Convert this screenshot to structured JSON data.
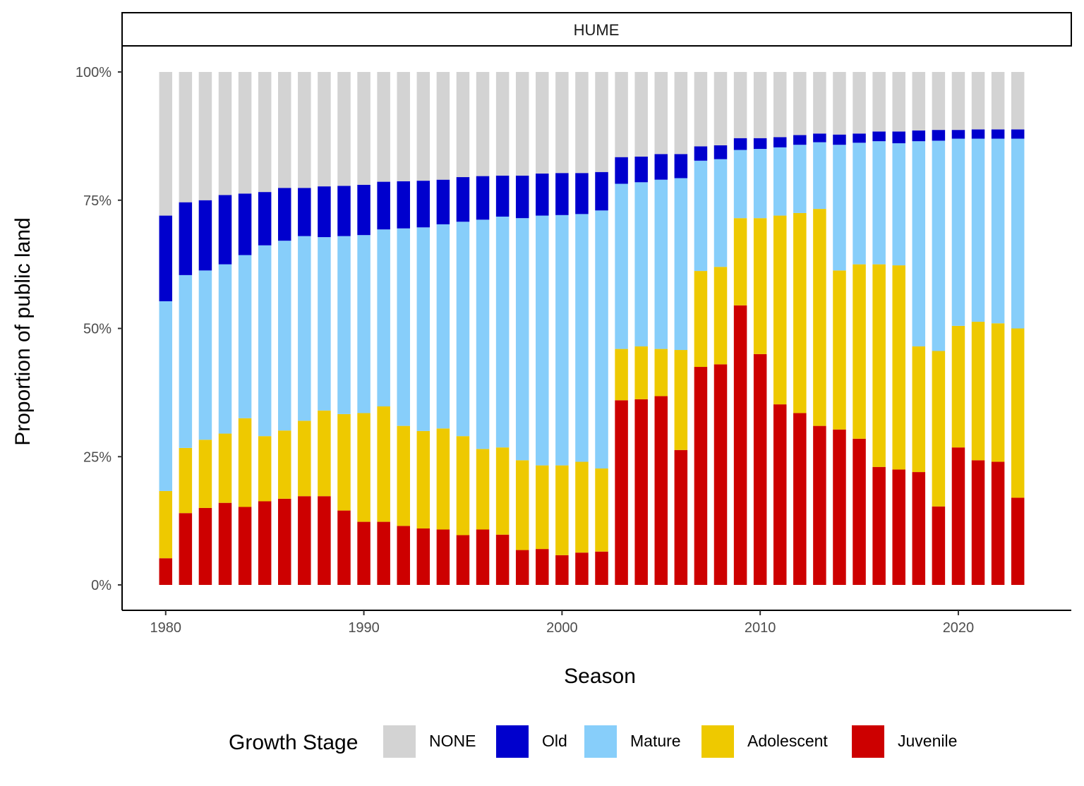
{
  "chart_data": {
    "type": "bar",
    "stacked": true,
    "facet_label": "HUME",
    "xlabel": "Season",
    "ylabel": "Proportion of public land",
    "ylim": [
      0,
      1
    ],
    "y_ticks": [
      {
        "value": 0,
        "label": "0%"
      },
      {
        "value": 0.25,
        "label": "25%"
      },
      {
        "value": 0.5,
        "label": "50%"
      },
      {
        "value": 0.75,
        "label": "75%"
      },
      {
        "value": 1,
        "label": "100%"
      }
    ],
    "x_ticks": [
      {
        "value": 1980,
        "label": "1980"
      },
      {
        "value": 1990,
        "label": "1990"
      },
      {
        "value": 2000,
        "label": "2000"
      },
      {
        "value": 2010,
        "label": "2010"
      },
      {
        "value": 2020,
        "label": "2020"
      }
    ],
    "xlim": [
      1977.8,
      2025.7
    ],
    "legend": {
      "title": "Growth Stage",
      "position": "bottom",
      "items": [
        {
          "key": "none",
          "label": "NONE",
          "color": "#d3d3d3"
        },
        {
          "key": "old",
          "label": "Old",
          "color": "#0000cd"
        },
        {
          "key": "mature",
          "label": "Mature",
          "color": "#87cefa"
        },
        {
          "key": "adolescent",
          "label": "Adolescent",
          "color": "#eec900"
        },
        {
          "key": "juvenile",
          "label": "Juvenile",
          "color": "#cd0000"
        }
      ]
    },
    "stack_order_bottom_to_top": [
      "juvenile",
      "adolescent",
      "mature",
      "old",
      "none"
    ],
    "years": [
      1980,
      1981,
      1982,
      1983,
      1984,
      1985,
      1986,
      1987,
      1988,
      1989,
      1990,
      1991,
      1992,
      1993,
      1994,
      1995,
      1996,
      1997,
      1998,
      1999,
      2000,
      2001,
      2002,
      2003,
      2004,
      2005,
      2006,
      2007,
      2008,
      2009,
      2010,
      2011,
      2012,
      2013,
      2014,
      2015,
      2016,
      2017,
      2018,
      2019,
      2020,
      2021,
      2022,
      2023
    ],
    "series": [
      {
        "name": "Juvenile",
        "key": "juvenile",
        "values": [
          0.052,
          0.14,
          0.15,
          0.16,
          0.152,
          0.163,
          0.168,
          0.173,
          0.173,
          0.145,
          0.123,
          0.123,
          0.115,
          0.11,
          0.108,
          0.097,
          0.108,
          0.098,
          0.068,
          0.07,
          0.058,
          0.063,
          0.065,
          0.36,
          0.362,
          0.368,
          0.263,
          0.425,
          0.43,
          0.545,
          0.45,
          0.352,
          0.335,
          0.31,
          0.303,
          0.285,
          0.23,
          0.225,
          0.22,
          0.153,
          0.268,
          0.243,
          0.24,
          0.17
        ]
      },
      {
        "name": "Adolescent",
        "key": "adolescent",
        "values": [
          0.131,
          0.127,
          0.133,
          0.135,
          0.173,
          0.127,
          0.133,
          0.147,
          0.167,
          0.188,
          0.212,
          0.225,
          0.195,
          0.19,
          0.197,
          0.193,
          0.157,
          0.17,
          0.175,
          0.163,
          0.175,
          0.177,
          0.162,
          0.1,
          0.103,
          0.092,
          0.195,
          0.187,
          0.19,
          0.17,
          0.265,
          0.368,
          0.39,
          0.423,
          0.31,
          0.34,
          0.395,
          0.398,
          0.245,
          0.303,
          0.237,
          0.27,
          0.27,
          0.33
        ]
      },
      {
        "name": "Mature",
        "key": "mature",
        "values": [
          0.37,
          0.337,
          0.33,
          0.33,
          0.318,
          0.372,
          0.37,
          0.36,
          0.338,
          0.347,
          0.347,
          0.345,
          0.385,
          0.397,
          0.398,
          0.418,
          0.447,
          0.45,
          0.472,
          0.487,
          0.488,
          0.483,
          0.503,
          0.322,
          0.32,
          0.33,
          0.335,
          0.215,
          0.21,
          0.133,
          0.135,
          0.133,
          0.133,
          0.13,
          0.245,
          0.237,
          0.24,
          0.238,
          0.4,
          0.41,
          0.365,
          0.357,
          0.36,
          0.37
        ]
      },
      {
        "name": "Old",
        "key": "old",
        "values": [
          0.167,
          0.142,
          0.137,
          0.135,
          0.12,
          0.104,
          0.103,
          0.094,
          0.099,
          0.098,
          0.098,
          0.093,
          0.092,
          0.091,
          0.087,
          0.087,
          0.085,
          0.08,
          0.083,
          0.082,
          0.082,
          0.08,
          0.075,
          0.052,
          0.05,
          0.05,
          0.047,
          0.028,
          0.027,
          0.023,
          0.021,
          0.02,
          0.019,
          0.017,
          0.02,
          0.018,
          0.019,
          0.023,
          0.021,
          0.021,
          0.017,
          0.018,
          0.018,
          0.018
        ]
      },
      {
        "name": "NONE",
        "key": "none",
        "values": [
          0.28,
          0.254,
          0.25,
          0.24,
          0.237,
          0.234,
          0.226,
          0.226,
          0.223,
          0.222,
          0.22,
          0.214,
          0.213,
          0.212,
          0.21,
          0.205,
          0.203,
          0.202,
          0.202,
          0.198,
          0.197,
          0.197,
          0.195,
          0.166,
          0.165,
          0.16,
          0.16,
          0.145,
          0.143,
          0.129,
          0.129,
          0.127,
          0.123,
          0.12,
          0.122,
          0.12,
          0.116,
          0.116,
          0.114,
          0.113,
          0.113,
          0.112,
          0.112,
          0.112
        ]
      }
    ]
  }
}
